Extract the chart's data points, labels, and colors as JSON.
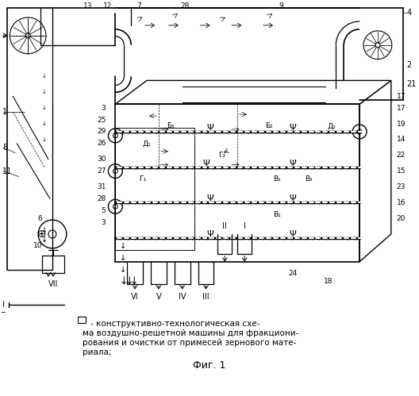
{
  "caption_line1": "- конструктивно-технологическая схе-",
  "caption_line2": "ма воздушно-решетной машины для фракциони-",
  "caption_line3": "рования и очистки от примесей зернового мате-",
  "caption_line4": "риала;",
  "fig_label": "Фиг. 1",
  "bg_color": "#ffffff"
}
